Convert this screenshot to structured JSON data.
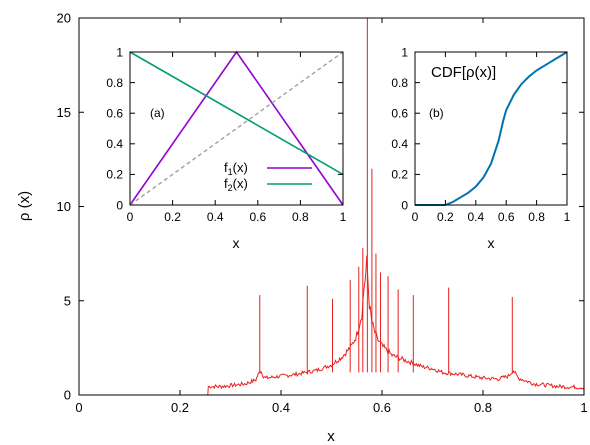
{
  "chart_data": [
    {
      "id": "main",
      "type": "line",
      "xlabel": "x",
      "ylabel": "ρ (x)",
      "xlim": [
        0,
        1
      ],
      "ylim": [
        0,
        20
      ],
      "xticks": [
        "0",
        "0.2",
        "0.4",
        "0.6",
        "0.8",
        "1"
      ],
      "yticks": [
        "0",
        "5",
        "10",
        "15",
        "20"
      ],
      "grid": false,
      "series": [
        {
          "color": "#e8211d",
          "x": [
            0.0,
            0.255,
            0.256,
            0.28,
            0.3,
            0.33,
            0.35,
            0.355,
            0.36,
            0.365,
            0.37,
            0.4,
            0.43,
            0.45,
            0.47,
            0.5,
            0.52,
            0.54,
            0.55,
            0.56,
            0.565,
            0.57,
            0.575,
            0.58,
            0.59,
            0.6,
            0.62,
            0.65,
            0.68,
            0.7,
            0.72,
            0.75,
            0.8,
            0.83,
            0.85,
            0.86,
            0.87,
            0.9,
            0.95,
            1.0
          ],
          "y": [
            0.0,
            0.0,
            0.45,
            0.45,
            0.5,
            0.6,
            0.8,
            1.1,
            1.3,
            1.0,
            0.9,
            1.0,
            1.1,
            1.2,
            1.3,
            1.6,
            2.0,
            2.6,
            3.2,
            4.3,
            5.8,
            7.0,
            4.8,
            3.8,
            3.0,
            2.6,
            2.1,
            1.8,
            1.5,
            1.4,
            1.2,
            1.1,
            0.9,
            0.85,
            1.0,
            1.3,
            0.9,
            0.6,
            0.45,
            0.4
          ]
        }
      ],
      "spikes": [
        {
          "x": 0.358,
          "y": 5.3
        },
        {
          "x": 0.452,
          "y": 5.8
        },
        {
          "x": 0.502,
          "y": 5.1
        },
        {
          "x": 0.537,
          "y": 6.1
        },
        {
          "x": 0.554,
          "y": 6.8
        },
        {
          "x": 0.562,
          "y": 7.8
        },
        {
          "x": 0.571,
          "y": 20.0
        },
        {
          "x": 0.58,
          "y": 12.0
        },
        {
          "x": 0.588,
          "y": 7.5
        },
        {
          "x": 0.597,
          "y": 6.5
        },
        {
          "x": 0.612,
          "y": 6.3
        },
        {
          "x": 0.632,
          "y": 5.6
        },
        {
          "x": 0.662,
          "y": 5.3
        },
        {
          "x": 0.732,
          "y": 5.7
        },
        {
          "x": 0.858,
          "y": 5.2
        }
      ]
    },
    {
      "id": "inset-a",
      "type": "line",
      "annotation": "(a)",
      "xlabel": "x",
      "ylabel": "",
      "xlim": [
        0,
        1
      ],
      "ylim": [
        0,
        1
      ],
      "xticks": [
        "0",
        "0.2",
        "0.4",
        "0.6",
        "0.8",
        "1"
      ],
      "yticks": [
        "0",
        "0.2",
        "0.4",
        "0.6",
        "0.8",
        "1"
      ],
      "legend_position": "bottom-right",
      "series": [
        {
          "name": "f1(x)",
          "legend_base": "f",
          "legend_sub": "1",
          "legend_tail": "(x)",
          "color": "#9400d3",
          "x": [
            0,
            0.5,
            1
          ],
          "y": [
            0,
            1,
            0
          ]
        },
        {
          "name": "f2(x)",
          "legend_base": "f",
          "legend_sub": "2",
          "legend_tail": "(x)",
          "color": "#009e73",
          "x": [
            0,
            1
          ],
          "y": [
            1,
            0.2
          ]
        },
        {
          "color": "#a0a0a0",
          "dashed": true,
          "x": [
            0,
            1
          ],
          "y": [
            0,
            1
          ]
        }
      ]
    },
    {
      "id": "inset-b",
      "type": "line",
      "annotation": "(b)",
      "title": "CDF[ρ(x)]",
      "xlabel": "x",
      "ylabel": "",
      "xlim": [
        0,
        1
      ],
      "ylim": [
        0,
        1
      ],
      "xticks": [
        "0",
        "0.2",
        "0.4",
        "0.6",
        "0.8",
        "1"
      ],
      "yticks": [
        "0",
        "0.2",
        "0.4",
        "0.6",
        "0.8",
        "1"
      ],
      "series": [
        {
          "color": "#0072b2",
          "x": [
            0.0,
            0.2,
            0.25,
            0.3,
            0.35,
            0.4,
            0.45,
            0.5,
            0.55,
            0.58,
            0.6,
            0.65,
            0.7,
            0.75,
            0.8,
            0.85,
            0.9,
            0.95,
            1.0
          ],
          "y": [
            0.0,
            0.0,
            0.02,
            0.05,
            0.08,
            0.12,
            0.18,
            0.27,
            0.42,
            0.55,
            0.62,
            0.72,
            0.79,
            0.84,
            0.88,
            0.91,
            0.94,
            0.97,
            1.0
          ]
        }
      ]
    }
  ]
}
